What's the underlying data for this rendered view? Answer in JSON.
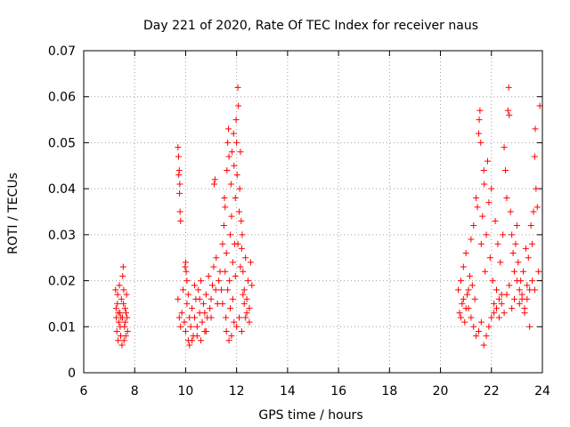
{
  "chart_data": {
    "type": "scatter",
    "title": "Day 221 of 2020, Rate Of TEC Index for receiver naus",
    "xlabel": "GPS time / hours",
    "ylabel": "ROTI / TECUs",
    "xlim": [
      6,
      24
    ],
    "ylim": [
      0,
      0.07
    ],
    "xticks": [
      6,
      8,
      10,
      12,
      14,
      16,
      18,
      20,
      22,
      24
    ],
    "yticks": [
      0,
      0.01,
      0.02,
      0.03,
      0.04,
      0.05,
      0.06,
      0.07
    ],
    "xtick_labels": [
      "6",
      "8",
      "10",
      "12",
      "14",
      "16",
      "18",
      "20",
      "22",
      "24"
    ],
    "ytick_labels": [
      "0",
      "0.01",
      "0.02",
      "0.03",
      "0.04",
      "0.05",
      "0.06",
      "0.07"
    ],
    "marker": "+",
    "grid": true,
    "color": "#ff0000",
    "series": [
      {
        "name": "naus",
        "points": [
          [
            7.25,
            0.018
          ],
          [
            7.28,
            0.012
          ],
          [
            7.3,
            0.009
          ],
          [
            7.32,
            0.015
          ],
          [
            7.35,
            0.007
          ],
          [
            7.38,
            0.011
          ],
          [
            7.4,
            0.019
          ],
          [
            7.42,
            0.013
          ],
          [
            7.45,
            0.008
          ],
          [
            7.48,
            0.016
          ],
          [
            7.5,
            0.006
          ],
          [
            7.52,
            0.012
          ],
          [
            7.55,
            0.023
          ],
          [
            7.57,
            0.018
          ],
          [
            7.6,
            0.01
          ],
          [
            7.62,
            0.014
          ],
          [
            7.65,
            0.008
          ],
          [
            7.68,
            0.017
          ],
          [
            7.7,
            0.012
          ],
          [
            7.72,
            0.009
          ],
          [
            7.27,
            0.014
          ],
          [
            7.33,
            0.017
          ],
          [
            7.43,
            0.01
          ],
          [
            7.53,
            0.021
          ],
          [
            7.58,
            0.007
          ],
          [
            7.63,
            0.011
          ],
          [
            7.36,
            0.013
          ],
          [
            7.46,
            0.012
          ],
          [
            7.56,
            0.015
          ],
          [
            7.66,
            0.013
          ],
          [
            9.7,
            0.049
          ],
          [
            9.72,
            0.047
          ],
          [
            9.75,
            0.044
          ],
          [
            9.76,
            0.039
          ],
          [
            9.78,
            0.035
          ],
          [
            9.8,
            0.033
          ],
          [
            9.73,
            0.043
          ],
          [
            9.77,
            0.041
          ],
          [
            9.7,
            0.016
          ],
          [
            9.75,
            0.012
          ],
          [
            9.8,
            0.01
          ],
          [
            9.85,
            0.013
          ],
          [
            9.9,
            0.018
          ],
          [
            9.95,
            0.011
          ],
          [
            10.0,
            0.009
          ],
          [
            10.05,
            0.015
          ],
          [
            10.1,
            0.007
          ],
          [
            10.15,
            0.012
          ],
          [
            10.0,
            0.024
          ],
          [
            10.02,
            0.022
          ],
          [
            10.05,
            0.02
          ],
          [
            9.98,
            0.023
          ],
          [
            10.2,
            0.01
          ],
          [
            10.25,
            0.014
          ],
          [
            10.3,
            0.008
          ],
          [
            10.35,
            0.012
          ],
          [
            10.4,
            0.016
          ],
          [
            10.45,
            0.01
          ],
          [
            10.5,
            0.018
          ],
          [
            10.55,
            0.013
          ],
          [
            10.6,
            0.02
          ],
          [
            10.65,
            0.011
          ],
          [
            10.7,
            0.015
          ],
          [
            10.75,
            0.009
          ],
          [
            10.8,
            0.017
          ],
          [
            10.85,
            0.012
          ],
          [
            10.9,
            0.021
          ],
          [
            10.95,
            0.014
          ],
          [
            11.0,
            0.016
          ],
          [
            11.05,
            0.019
          ],
          [
            11.1,
            0.023
          ],
          [
            11.12,
            0.041
          ],
          [
            11.15,
            0.042
          ],
          [
            11.18,
            0.018
          ],
          [
            11.2,
            0.025
          ],
          [
            11.25,
            0.015
          ],
          [
            11.3,
            0.02
          ],
          [
            11.35,
            0.022
          ],
          [
            10.15,
            0.006
          ],
          [
            10.25,
            0.007
          ],
          [
            10.45,
            0.008
          ],
          [
            10.6,
            0.007
          ],
          [
            10.8,
            0.009
          ],
          [
            11.0,
            0.012
          ],
          [
            10.1,
            0.017
          ],
          [
            10.35,
            0.019
          ],
          [
            10.55,
            0.016
          ],
          [
            10.75,
            0.013
          ],
          [
            11.4,
            0.018
          ],
          [
            11.45,
            0.028
          ],
          [
            11.5,
            0.032
          ],
          [
            11.52,
            0.038
          ],
          [
            11.55,
            0.036
          ],
          [
            11.58,
            0.012
          ],
          [
            11.6,
            0.026
          ],
          [
            11.62,
            0.044
          ],
          [
            11.65,
            0.05
          ],
          [
            11.68,
            0.053
          ],
          [
            11.7,
            0.047
          ],
          [
            11.72,
            0.02
          ],
          [
            11.75,
            0.03
          ],
          [
            11.78,
            0.041
          ],
          [
            11.8,
            0.034
          ],
          [
            11.82,
            0.048
          ],
          [
            11.85,
            0.016
          ],
          [
            11.88,
            0.052
          ],
          [
            11.9,
            0.045
          ],
          [
            11.92,
            0.028
          ],
          [
            11.95,
            0.038
          ],
          [
            11.98,
            0.055
          ],
          [
            12.0,
            0.05
          ],
          [
            12.02,
            0.043
          ],
          [
            12.05,
            0.062
          ],
          [
            12.07,
            0.058
          ],
          [
            12.1,
            0.035
          ],
          [
            12.12,
            0.04
          ],
          [
            12.15,
            0.048
          ],
          [
            12.18,
            0.033
          ],
          [
            12.2,
            0.027
          ],
          [
            12.22,
            0.03
          ],
          [
            12.25,
            0.022
          ],
          [
            12.3,
            0.018
          ],
          [
            12.35,
            0.025
          ],
          [
            12.4,
            0.016
          ],
          [
            12.45,
            0.02
          ],
          [
            12.5,
            0.014
          ],
          [
            12.55,
            0.024
          ],
          [
            12.6,
            0.019
          ],
          [
            11.6,
            0.009
          ],
          [
            11.7,
            0.007
          ],
          [
            11.8,
            0.008
          ],
          [
            11.9,
            0.011
          ],
          [
            12.0,
            0.01
          ],
          [
            12.1,
            0.012
          ],
          [
            12.2,
            0.009
          ],
          [
            12.3,
            0.015
          ],
          [
            12.4,
            0.013
          ],
          [
            12.5,
            0.011
          ],
          [
            11.45,
            0.015
          ],
          [
            11.55,
            0.022
          ],
          [
            11.65,
            0.018
          ],
          [
            11.75,
            0.014
          ],
          [
            11.85,
            0.024
          ],
          [
            11.95,
            0.021
          ],
          [
            12.05,
            0.028
          ],
          [
            12.15,
            0.023
          ],
          [
            12.25,
            0.017
          ],
          [
            12.35,
            0.012
          ],
          [
            20.7,
            0.018
          ],
          [
            20.75,
            0.013
          ],
          [
            20.8,
            0.02
          ],
          [
            20.85,
            0.015
          ],
          [
            20.9,
            0.023
          ],
          [
            20.95,
            0.011
          ],
          [
            21.0,
            0.026
          ],
          [
            21.05,
            0.017
          ],
          [
            21.1,
            0.014
          ],
          [
            21.15,
            0.021
          ],
          [
            21.2,
            0.029
          ],
          [
            21.25,
            0.019
          ],
          [
            21.3,
            0.032
          ],
          [
            21.35,
            0.016
          ],
          [
            21.4,
            0.038
          ],
          [
            21.45,
            0.036
          ],
          [
            21.5,
            0.052
          ],
          [
            21.52,
            0.055
          ],
          [
            21.55,
            0.057
          ],
          [
            21.58,
            0.05
          ],
          [
            21.6,
            0.028
          ],
          [
            21.65,
            0.034
          ],
          [
            21.7,
            0.044
          ],
          [
            21.72,
            0.041
          ],
          [
            21.75,
            0.022
          ],
          [
            21.8,
            0.03
          ],
          [
            21.85,
            0.046
          ],
          [
            21.9,
            0.037
          ],
          [
            21.95,
            0.025
          ],
          [
            22.0,
            0.04
          ],
          [
            22.05,
            0.02
          ],
          [
            22.1,
            0.015
          ],
          [
            22.15,
            0.033
          ],
          [
            22.2,
            0.018
          ],
          [
            22.25,
            0.028
          ],
          [
            22.3,
            0.012
          ],
          [
            22.35,
            0.024
          ],
          [
            22.4,
            0.017
          ],
          [
            22.45,
            0.03
          ],
          [
            22.5,
            0.049
          ],
          [
            22.55,
            0.044
          ],
          [
            22.6,
            0.038
          ],
          [
            22.65,
            0.057
          ],
          [
            22.68,
            0.062
          ],
          [
            22.7,
            0.056
          ],
          [
            22.75,
            0.035
          ],
          [
            22.8,
            0.03
          ],
          [
            22.85,
            0.026
          ],
          [
            22.9,
            0.022
          ],
          [
            22.95,
            0.028
          ],
          [
            23.0,
            0.032
          ],
          [
            23.05,
            0.024
          ],
          [
            23.1,
            0.018
          ],
          [
            23.15,
            0.02
          ],
          [
            23.2,
            0.016
          ],
          [
            23.25,
            0.022
          ],
          [
            23.3,
            0.014
          ],
          [
            23.35,
            0.027
          ],
          [
            23.4,
            0.019
          ],
          [
            23.45,
            0.025
          ],
          [
            23.5,
            0.018
          ],
          [
            23.55,
            0.032
          ],
          [
            23.6,
            0.028
          ],
          [
            23.65,
            0.035
          ],
          [
            23.7,
            0.047
          ],
          [
            23.72,
            0.053
          ],
          [
            23.75,
            0.04
          ],
          [
            23.8,
            0.036
          ],
          [
            23.85,
            0.022
          ],
          [
            23.9,
            0.058
          ],
          [
            21.3,
            0.01
          ],
          [
            21.4,
            0.008
          ],
          [
            21.5,
            0.009
          ],
          [
            21.6,
            0.011
          ],
          [
            21.7,
            0.006
          ],
          [
            21.8,
            0.008
          ],
          [
            21.9,
            0.01
          ],
          [
            22.0,
            0.012
          ],
          [
            22.1,
            0.013
          ],
          [
            22.2,
            0.014
          ],
          [
            20.8,
            0.012
          ],
          [
            20.9,
            0.016
          ],
          [
            21.0,
            0.014
          ],
          [
            21.1,
            0.018
          ],
          [
            21.2,
            0.012
          ],
          [
            22.3,
            0.016
          ],
          [
            22.4,
            0.015
          ],
          [
            22.5,
            0.013
          ],
          [
            22.6,
            0.017
          ],
          [
            22.7,
            0.019
          ],
          [
            22.8,
            0.014
          ],
          [
            22.9,
            0.016
          ],
          [
            23.0,
            0.02
          ],
          [
            23.1,
            0.015
          ],
          [
            23.2,
            0.017
          ],
          [
            23.3,
            0.013
          ],
          [
            23.4,
            0.016
          ],
          [
            23.5,
            0.01
          ],
          [
            23.6,
            0.02
          ],
          [
            23.7,
            0.018
          ]
        ]
      }
    ]
  }
}
